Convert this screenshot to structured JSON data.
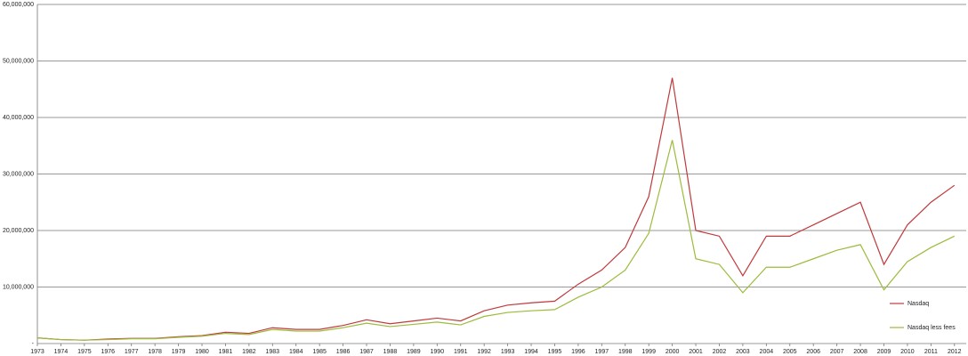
{
  "chart_data": {
    "type": "line",
    "x": [
      1973,
      1974,
      1975,
      1976,
      1977,
      1978,
      1979,
      1980,
      1981,
      1982,
      1983,
      1984,
      1985,
      1986,
      1987,
      1988,
      1989,
      1990,
      1991,
      1992,
      1993,
      1994,
      1995,
      1996,
      1997,
      1998,
      1999,
      2000,
      2001,
      2002,
      2003,
      2004,
      2005,
      2006,
      2007,
      2008,
      2009,
      2010,
      2011,
      2012
    ],
    "series": [
      {
        "name": "Nasdaq",
        "color": "#c0393b",
        "values": [
          1000000,
          700000,
          600000,
          800000,
          900000,
          900000,
          1200000,
          1400000,
          2000000,
          1800000,
          2800000,
          2500000,
          2500000,
          3200000,
          4200000,
          3500000,
          4000000,
          4500000,
          4000000,
          5800000,
          6800000,
          7200000,
          7500000,
          10500000,
          13000000,
          17000000,
          26000000,
          47000000,
          20000000,
          19000000,
          12000000,
          19000000,
          19000000,
          21000000,
          23000000,
          25000000,
          14000000,
          21000000,
          25000000,
          28000000
        ]
      },
      {
        "name": "Nasdaq less fees",
        "color": "#9bbb3b",
        "values": [
          1000000,
          700000,
          600000,
          700000,
          850000,
          850000,
          1100000,
          1300000,
          1800000,
          1600000,
          2500000,
          2200000,
          2200000,
          2800000,
          3600000,
          3000000,
          3400000,
          3800000,
          3300000,
          4800000,
          5500000,
          5800000,
          6000000,
          8200000,
          10000000,
          13000000,
          19500000,
          36000000,
          15000000,
          14000000,
          9000000,
          13500000,
          13500000,
          15000000,
          16500000,
          17500000,
          9500000,
          14500000,
          17000000,
          19000000
        ]
      }
    ],
    "xlim": [
      1973,
      2012.5
    ],
    "xticks": [
      1973,
      1974,
      1975,
      1976,
      1977,
      1978,
      1979,
      1980,
      1981,
      1982,
      1983,
      1984,
      1985,
      1986,
      1987,
      1988,
      1989,
      1990,
      1991,
      1992,
      1993,
      1994,
      1995,
      1996,
      1997,
      1998,
      1999,
      2000,
      2001,
      2002,
      2003,
      2004,
      2005,
      2006,
      2007,
      2008,
      2009,
      2010,
      2011,
      2012
    ],
    "ylim": [
      0,
      60000000
    ],
    "yticks": [
      {
        "value": 0,
        "label": "-"
      },
      {
        "value": 10000000,
        "label": "10,000,000"
      },
      {
        "value": 20000000,
        "label": "20,000,000"
      },
      {
        "value": 30000000,
        "label": "30,000,000"
      },
      {
        "value": 40000000,
        "label": "40,000,000"
      },
      {
        "value": 50000000,
        "label": "50,000,000"
      },
      {
        "value": 60000000,
        "label": "60,000,000"
      }
    ],
    "grid": true
  }
}
